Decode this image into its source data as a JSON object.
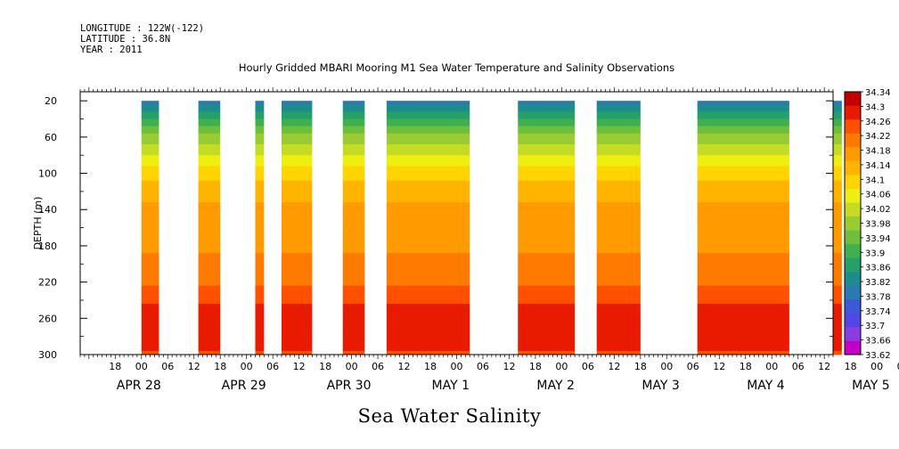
{
  "header": {
    "longitude": "LONGITUDE : 122W(-122)",
    "latitude": "LATITUDE : 36.8N",
    "year": "YEAR : 2011"
  },
  "chart_data": {
    "type": "heatmap",
    "title": "Hourly Gridded MBARI Mooring M1 Sea Water Temperature and Salinity Observations",
    "xlabel": "Sea Water Salinity",
    "ylabel": "DEPTH (m)",
    "x_range_hours": [
      -14,
      158
    ],
    "x_origin_label": "APR 28 00",
    "hour_ticks": [
      "18",
      "00",
      "06",
      "12",
      "18",
      "00",
      "06",
      "12",
      "18",
      "00",
      "06",
      "12",
      "18",
      "00",
      "06",
      "12",
      "18",
      "00",
      "06",
      "12",
      "18",
      "00",
      "06",
      "12",
      "18",
      "00",
      "06",
      "12",
      "18",
      "00",
      "06",
      "12"
    ],
    "date_labels": [
      {
        "label": "APR 28",
        "hour": 0
      },
      {
        "label": "APR 29",
        "hour": 24
      },
      {
        "label": "APR 30",
        "hour": 48
      },
      {
        "label": "MAY  1",
        "hour": 72
      },
      {
        "label": "MAY  2",
        "hour": 96
      },
      {
        "label": "MAY  3",
        "hour": 120
      },
      {
        "label": "MAY  4",
        "hour": 144
      },
      {
        "label": "MAY  5",
        "hour": 168
      }
    ],
    "y_ticks": [
      20,
      60,
      100,
      140,
      180,
      220,
      260,
      300
    ],
    "y_range": [
      10,
      300
    ],
    "y_inverted": true,
    "depths": [
      20,
      60,
      100,
      140,
      180,
      220,
      260,
      300
    ],
    "salinity_profile_by_depth": [
      33.78,
      33.98,
      34.1,
      34.16,
      34.18,
      34.22,
      34.3,
      34.26
    ],
    "data_segments_hours": [
      [
        0,
        4
      ],
      [
        13,
        18
      ],
      [
        26,
        28
      ],
      [
        32,
        39
      ],
      [
        46,
        51
      ],
      [
        56,
        75
      ],
      [
        86,
        99
      ],
      [
        104,
        114
      ],
      [
        127,
        148
      ],
      [
        158,
        160
      ]
    ],
    "colorbar": {
      "min": 33.62,
      "max": 34.34,
      "step": 0.04,
      "labels": [
        "34.34",
        "34.3",
        "34.26",
        "34.22",
        "34.18",
        "34.14",
        "34.1",
        "34.06",
        "34.02",
        "33.98",
        "33.94",
        "33.9",
        "33.86",
        "33.82",
        "33.78",
        "33.74",
        "33.7",
        "33.66",
        "33.62"
      ],
      "colors": [
        "#c400c4",
        "#8b3ce0",
        "#5246e6",
        "#3c5ad8",
        "#2a78b4",
        "#1f8c8c",
        "#25a06a",
        "#40b04e",
        "#6ec03c",
        "#98cc32",
        "#c6dc24",
        "#eeee10",
        "#ffd400",
        "#ffb400",
        "#ff9a00",
        "#ff7a00",
        "#ff5000",
        "#e81a00",
        "#c40000"
      ]
    }
  }
}
